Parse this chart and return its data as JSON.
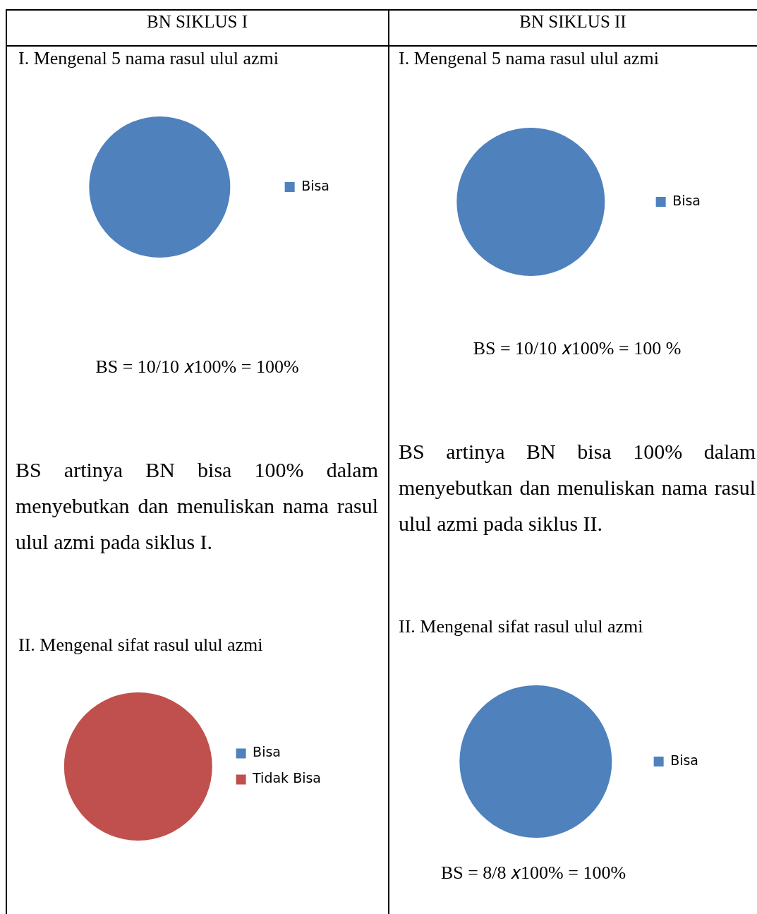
{
  "chart_data": [
    {
      "type": "pie",
      "subtitle": "BN SIKLUS I",
      "title": "I. Mengenal 5 nama rasul ulul azmi",
      "categories": [
        "Bisa"
      ],
      "values": [
        100
      ],
      "colors": [
        "#4f81bd"
      ],
      "legend": "right",
      "annotations": [
        "BS = 10/10 𝑥100% = 100%",
        "BS artinya BN bisa 100% dalam menyebutkan dan menuliskan nama rasul ulul azmi pada siklus I."
      ]
    },
    {
      "type": "pie",
      "subtitle": "BN SIKLUS II",
      "title": "I. Mengenal 5 nama rasul ulul azmi",
      "categories": [
        "Bisa"
      ],
      "values": [
        100
      ],
      "colors": [
        "#4f81bd"
      ],
      "legend": "right",
      "annotations": [
        "BS = 10/10 𝑥100% = 100 %",
        "BS artinya BN bisa 100% dalam menyebutkan dan menuliskan nama rasul ulul azmi pada siklus II."
      ]
    },
    {
      "type": "pie",
      "title": "II. Mengenal sifat rasul ulul azmi",
      "categories": [
        "Bisa",
        "Tidak Bisa"
      ],
      "values": [
        0,
        100
      ],
      "colors": [
        "#4f81bd",
        "#c0504d"
      ],
      "legend": "right"
    },
    {
      "type": "pie",
      "title": "II. Mengenal sifat rasul ulul azmi",
      "categories": [
        "Bisa"
      ],
      "values": [
        100
      ],
      "colors": [
        "#4f81bd"
      ],
      "legend": "right",
      "annotations": [
        "BS = 8/8 𝑥100% = 100%"
      ]
    }
  ]
}
